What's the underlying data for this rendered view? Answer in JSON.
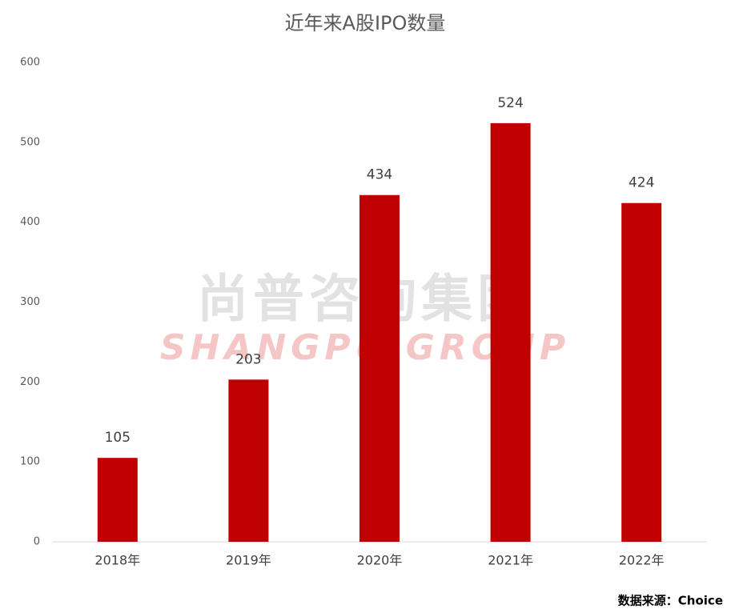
{
  "chart_data": {
    "type": "bar",
    "title": "近年来A股IPO数量",
    "categories": [
      "2018年",
      "2019年",
      "2020年",
      "2021年",
      "2022年"
    ],
    "values": [
      105,
      203,
      434,
      524,
      424
    ],
    "color": "#c00000",
    "ylim": [
      0,
      600
    ],
    "yticks": [
      0,
      100,
      200,
      300,
      400,
      500,
      600
    ],
    "grid": false,
    "watermark": [
      "尚普咨询集团",
      "SHANGPU GROUP"
    ],
    "source": "数据来源：Choice"
  }
}
